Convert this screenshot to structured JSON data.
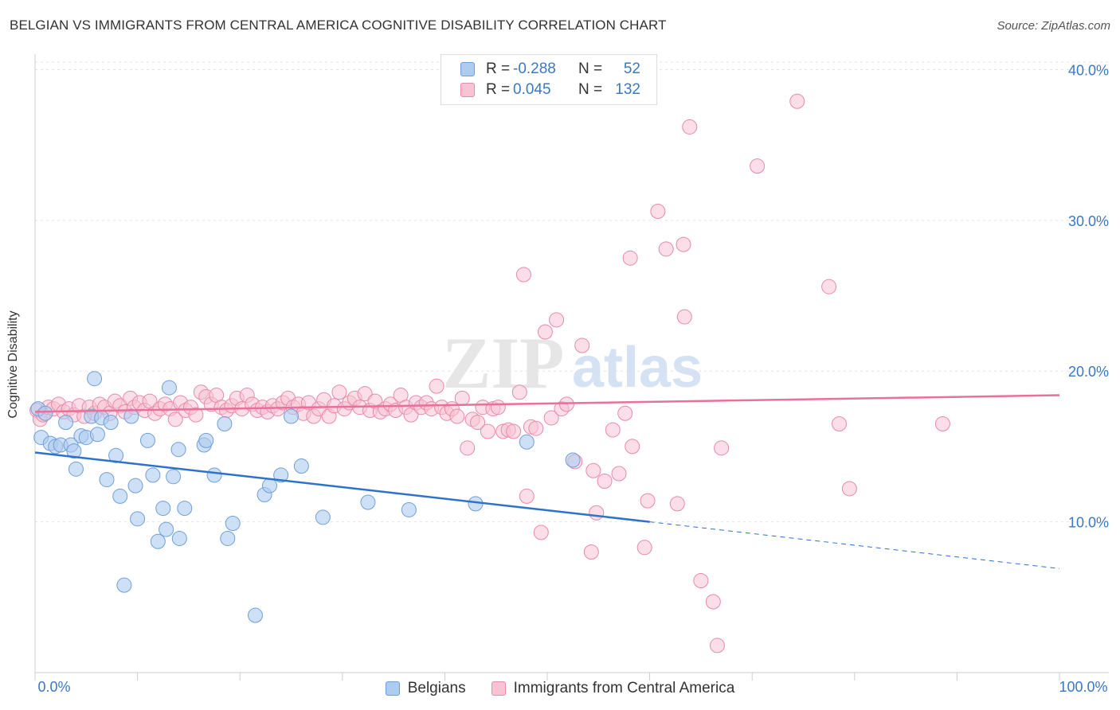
{
  "title": "BELGIAN VS IMMIGRANTS FROM CENTRAL AMERICA COGNITIVE DISABILITY CORRELATION CHART",
  "source": "Source: ZipAtlas.com",
  "watermark": {
    "zip": "ZIP",
    "atlas": "atlas"
  },
  "legend_top": [
    {
      "r_label": "R =",
      "r_value": "-0.288",
      "n_label": "N =",
      "n_value": "52",
      "color": "#aecbf0",
      "border": "#6f9fd8"
    },
    {
      "r_label": "R =",
      "r_value": "0.045",
      "n_label": "N =",
      "n_value": "132",
      "color": "#f8c3d3",
      "border": "#e88aa8"
    }
  ],
  "colors": {
    "blue_fill": "#aecbf0",
    "blue_stroke": "#6f9fd8",
    "blue_line": "#2f72cc",
    "pink_fill": "#f8c3d3",
    "pink_stroke": "#e88aa8",
    "pink_line": "#e8709a",
    "tick": "#3b78c4"
  },
  "chart_data": {
    "type": "scatter",
    "title": "BELGIAN VS IMMIGRANTS FROM CENTRAL AMERICA COGNITIVE DISABILITY CORRELATION CHART",
    "xlabel": "",
    "ylabel": "Cognitive Disability",
    "xlim": [
      0,
      100
    ],
    "ylim": [
      0,
      40.5
    ],
    "x_tick_labels": [
      "0.0%",
      "100.0%"
    ],
    "y_ticks": [
      10,
      20,
      30,
      40
    ],
    "y_tick_labels": [
      "10.0%",
      "20.0%",
      "30.0%",
      "40.0%"
    ],
    "grid": true,
    "legend": "top-center",
    "series": [
      {
        "name": "Belgians",
        "points": [
          [
            0.3,
            17.5
          ],
          [
            0.6,
            15.6
          ],
          [
            1.0,
            17.2
          ],
          [
            1.5,
            15.2
          ],
          [
            2.0,
            15.0
          ],
          [
            2.5,
            15.1
          ],
          [
            3.0,
            16.6
          ],
          [
            3.5,
            15.1
          ],
          [
            3.8,
            14.7
          ],
          [
            4.0,
            13.5
          ],
          [
            4.5,
            15.7
          ],
          [
            5.0,
            15.6
          ],
          [
            5.5,
            17.0
          ],
          [
            5.8,
            19.5
          ],
          [
            6.1,
            15.8
          ],
          [
            6.5,
            16.9
          ],
          [
            7.0,
            12.8
          ],
          [
            7.4,
            16.6
          ],
          [
            7.9,
            14.4
          ],
          [
            8.3,
            11.7
          ],
          [
            8.7,
            5.8
          ],
          [
            9.4,
            17.0
          ],
          [
            9.8,
            12.4
          ],
          [
            10.0,
            10.2
          ],
          [
            11.0,
            15.4
          ],
          [
            11.5,
            13.1
          ],
          [
            12.0,
            8.7
          ],
          [
            12.5,
            10.9
          ],
          [
            12.8,
            9.5
          ],
          [
            13.1,
            18.9
          ],
          [
            13.5,
            13.0
          ],
          [
            14.0,
            14.8
          ],
          [
            14.1,
            8.9
          ],
          [
            14.6,
            10.9
          ],
          [
            16.5,
            15.1
          ],
          [
            16.7,
            15.4
          ],
          [
            17.5,
            13.1
          ],
          [
            18.5,
            16.5
          ],
          [
            18.8,
            8.9
          ],
          [
            19.3,
            9.9
          ],
          [
            21.5,
            3.8
          ],
          [
            22.4,
            11.8
          ],
          [
            22.9,
            12.4
          ],
          [
            24.0,
            13.1
          ],
          [
            25.0,
            17.0
          ],
          [
            26.0,
            13.7
          ],
          [
            28.1,
            10.3
          ],
          [
            32.5,
            11.3
          ],
          [
            36.5,
            10.8
          ],
          [
            43.0,
            11.2
          ],
          [
            48.0,
            15.3
          ],
          [
            52.5,
            14.1
          ]
        ],
        "trend": {
          "x0": 0,
          "y0": 14.6,
          "x1": 60,
          "y1": 10.0
        },
        "trend_extension": {
          "x0": 60,
          "y0": 10.0,
          "x1": 100,
          "y1": 6.9
        }
      },
      {
        "name": "Immigrants from Central America",
        "points": [
          [
            0.2,
            17.4
          ],
          [
            0.5,
            16.8
          ],
          [
            0.8,
            17.1
          ],
          [
            1.3,
            17.6
          ],
          [
            1.8,
            17.5
          ],
          [
            2.3,
            17.8
          ],
          [
            2.8,
            17.3
          ],
          [
            3.3,
            17.5
          ],
          [
            3.8,
            17.1
          ],
          [
            4.3,
            17.7
          ],
          [
            4.8,
            17.0
          ],
          [
            5.3,
            17.6
          ],
          [
            5.8,
            17.2
          ],
          [
            6.3,
            17.8
          ],
          [
            6.8,
            17.6
          ],
          [
            7.3,
            17.2
          ],
          [
            7.8,
            18.0
          ],
          [
            8.3,
            17.7
          ],
          [
            8.8,
            17.3
          ],
          [
            9.3,
            18.2
          ],
          [
            9.7,
            17.6
          ],
          [
            10.2,
            17.9
          ],
          [
            10.7,
            17.4
          ],
          [
            11.2,
            18.0
          ],
          [
            11.7,
            17.2
          ],
          [
            12.2,
            17.5
          ],
          [
            12.7,
            17.8
          ],
          [
            13.2,
            17.5
          ],
          [
            13.7,
            16.8
          ],
          [
            14.2,
            17.9
          ],
          [
            14.7,
            17.4
          ],
          [
            15.2,
            17.6
          ],
          [
            15.7,
            17.1
          ],
          [
            16.2,
            18.6
          ],
          [
            16.7,
            18.3
          ],
          [
            17.2,
            17.8
          ],
          [
            17.7,
            18.4
          ],
          [
            18.2,
            17.6
          ],
          [
            18.7,
            17.4
          ],
          [
            19.2,
            17.7
          ],
          [
            19.7,
            18.2
          ],
          [
            20.2,
            17.5
          ],
          [
            20.7,
            18.4
          ],
          [
            21.2,
            17.8
          ],
          [
            21.7,
            17.4
          ],
          [
            22.2,
            17.6
          ],
          [
            22.7,
            17.3
          ],
          [
            23.2,
            17.7
          ],
          [
            23.7,
            17.5
          ],
          [
            24.2,
            17.9
          ],
          [
            24.7,
            18.2
          ],
          [
            25.2,
            17.6
          ],
          [
            25.7,
            17.8
          ],
          [
            26.2,
            17.2
          ],
          [
            26.7,
            17.9
          ],
          [
            27.2,
            17.0
          ],
          [
            27.7,
            17.5
          ],
          [
            28.2,
            18.1
          ],
          [
            28.7,
            17.0
          ],
          [
            29.2,
            17.7
          ],
          [
            29.7,
            18.6
          ],
          [
            30.2,
            17.5
          ],
          [
            30.7,
            17.9
          ],
          [
            31.2,
            18.2
          ],
          [
            31.7,
            17.6
          ],
          [
            32.2,
            18.5
          ],
          [
            32.7,
            17.4
          ],
          [
            33.2,
            18.0
          ],
          [
            33.7,
            17.3
          ],
          [
            34.2,
            17.5
          ],
          [
            34.7,
            17.8
          ],
          [
            35.2,
            17.4
          ],
          [
            35.7,
            18.4
          ],
          [
            36.2,
            17.6
          ],
          [
            36.7,
            17.1
          ],
          [
            37.2,
            17.9
          ],
          [
            37.7,
            17.6
          ],
          [
            38.2,
            17.9
          ],
          [
            38.7,
            17.5
          ],
          [
            39.2,
            19.0
          ],
          [
            39.7,
            17.6
          ],
          [
            40.2,
            17.2
          ],
          [
            40.7,
            17.5
          ],
          [
            41.2,
            17.0
          ],
          [
            41.7,
            18.2
          ],
          [
            42.2,
            14.9
          ],
          [
            42.7,
            16.8
          ],
          [
            43.2,
            16.6
          ],
          [
            43.7,
            17.6
          ],
          [
            44.2,
            16.0
          ],
          [
            44.7,
            17.5
          ],
          [
            45.2,
            17.6
          ],
          [
            45.7,
            16.0
          ],
          [
            46.2,
            16.1
          ],
          [
            46.7,
            16.0
          ],
          [
            47.3,
            18.6
          ],
          [
            47.7,
            26.4
          ],
          [
            48.0,
            11.7
          ],
          [
            48.4,
            16.3
          ],
          [
            48.9,
            16.2
          ],
          [
            49.4,
            9.3
          ],
          [
            49.8,
            22.6
          ],
          [
            50.4,
            16.9
          ],
          [
            50.9,
            23.4
          ],
          [
            51.4,
            17.5
          ],
          [
            51.9,
            17.8
          ],
          [
            52.7,
            14.0
          ],
          [
            53.4,
            21.7
          ],
          [
            54.3,
            8.0
          ],
          [
            54.5,
            13.4
          ],
          [
            54.8,
            10.6
          ],
          [
            55.6,
            12.7
          ],
          [
            56.4,
            16.1
          ],
          [
            57.0,
            13.2
          ],
          [
            57.6,
            17.2
          ],
          [
            58.1,
            27.5
          ],
          [
            58.3,
            15.0
          ],
          [
            59.5,
            8.3
          ],
          [
            59.8,
            11.4
          ],
          [
            60.8,
            30.6
          ],
          [
            61.6,
            28.1
          ],
          [
            62.7,
            11.2
          ],
          [
            63.3,
            28.4
          ],
          [
            63.4,
            23.6
          ],
          [
            63.9,
            36.2
          ],
          [
            65.0,
            6.1
          ],
          [
            66.2,
            4.7
          ],
          [
            66.6,
            1.8
          ],
          [
            67.0,
            14.9
          ],
          [
            70.5,
            33.6
          ],
          [
            74.4,
            37.9
          ],
          [
            77.5,
            25.6
          ],
          [
            78.5,
            16.5
          ],
          [
            79.5,
            12.2
          ],
          [
            88.6,
            16.5
          ]
        ],
        "trend": {
          "x0": 0,
          "y0": 17.3,
          "x1": 100,
          "y1": 18.4
        }
      }
    ]
  }
}
